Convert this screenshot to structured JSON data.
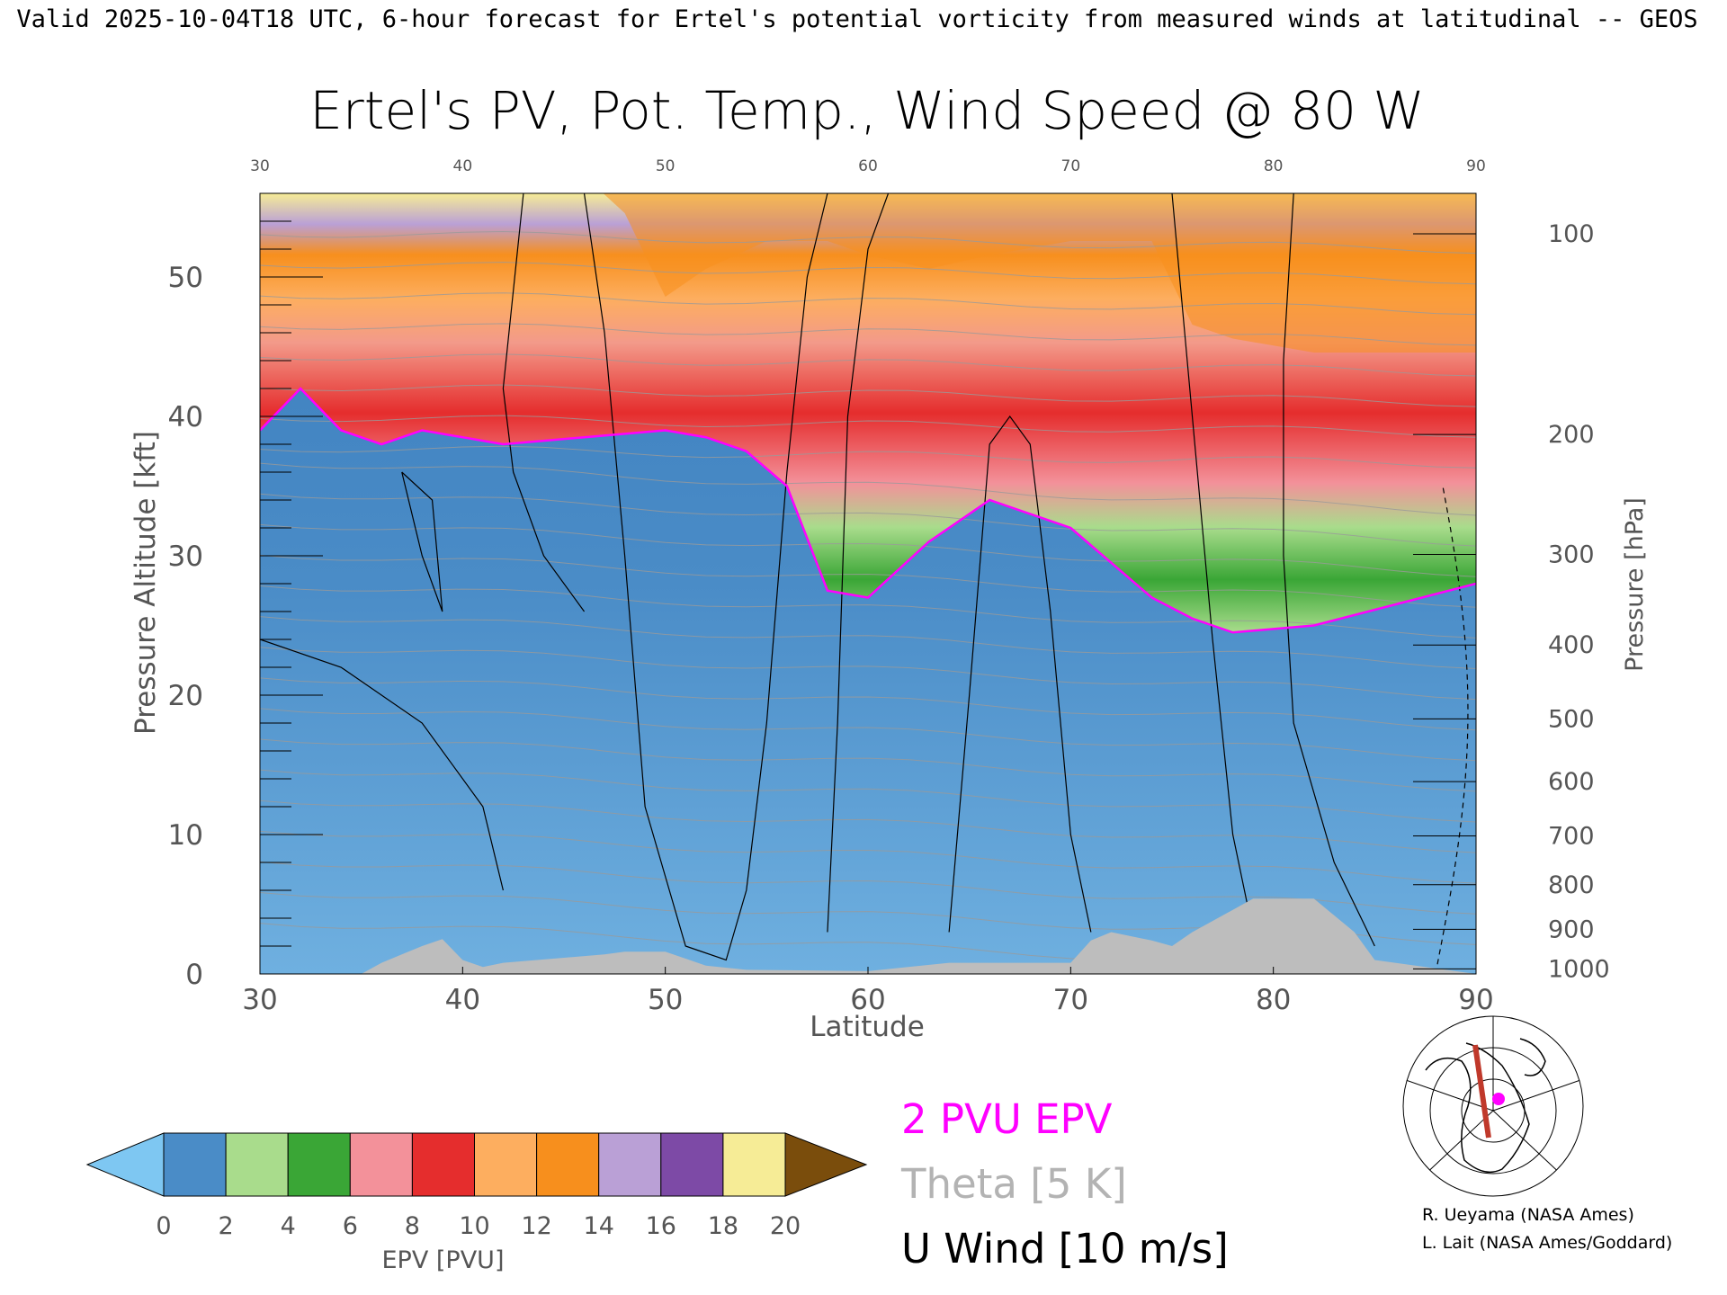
{
  "header": {
    "valid_line": "Valid 2025-10-04T18 UTC, 6-hour forecast for Ertel's potential vorticity from measured winds at latitudinal -- GEOS"
  },
  "chart_data": {
    "type": "heatmap",
    "title": "Ertel's PV, Pot. Temp., Wind Speed @ 80 W",
    "xlabel": "Latitude",
    "ylabel_left": "Pressure Altitude [kft]",
    "ylabel_right": "Pressure [hPa]",
    "xlim": [
      30,
      90
    ],
    "ylim": [
      0,
      56
    ],
    "x_ticks": [
      "30",
      "40",
      "50",
      "60",
      "70",
      "80",
      "90"
    ],
    "y_ticks": [
      "0",
      "10",
      "20",
      "30",
      "40",
      "50"
    ],
    "pressure_ticks": [
      {
        "label": "100",
        "kft": 53.1
      },
      {
        "label": "200",
        "kft": 38.7
      },
      {
        "label": "300",
        "kft": 30.1
      },
      {
        "label": "400",
        "kft": 23.6
      },
      {
        "label": "500",
        "kft": 18.3
      },
      {
        "label": "600",
        "kft": 13.8
      },
      {
        "label": "700",
        "kft": 9.9
      },
      {
        "label": "800",
        "kft": 6.4
      },
      {
        "label": "900",
        "kft": 3.2
      },
      {
        "label": "1000",
        "kft": 0.36
      }
    ],
    "pv_2pvu_boundary": {
      "lat": [
        30,
        32,
        34,
        36,
        38,
        42,
        46,
        50,
        52,
        54,
        56,
        58,
        60,
        63,
        66,
        70,
        74,
        76,
        78,
        82,
        86,
        90
      ],
      "kft": [
        39,
        42,
        39,
        38,
        39,
        38,
        38.5,
        39,
        38.5,
        37.5,
        35,
        27.5,
        27,
        31,
        34,
        32,
        27,
        25.5,
        24.5,
        25,
        26.5,
        28
      ]
    },
    "tropopause_top": {
      "lat": [
        30,
        35,
        40,
        45,
        48,
        50,
        52,
        55,
        58,
        60,
        63,
        66,
        70,
        74,
        76,
        78,
        82,
        86,
        90
      ],
      "kft": [
        56,
        56,
        56,
        56,
        52,
        46,
        48,
        50,
        50,
        49,
        48,
        49,
        50,
        50,
        44,
        43,
        42,
        42,
        42
      ]
    },
    "topography": {
      "lat": [
        30,
        35,
        36,
        37,
        38,
        39,
        40,
        41,
        42,
        47,
        48,
        50,
        52,
        54,
        60,
        64,
        70,
        71,
        72,
        74,
        75,
        76,
        77,
        78,
        79,
        80,
        81,
        82,
        83,
        84,
        85,
        90
      ],
      "kft": [
        0,
        0,
        0.8,
        1.4,
        2.0,
        2.5,
        1.0,
        0.5,
        0.8,
        1.4,
        1.6,
        1.6,
        0.6,
        0.3,
        0.2,
        0.8,
        0.8,
        2.4,
        3.0,
        2.4,
        2.0,
        3.0,
        3.8,
        4.6,
        5.4,
        5.4,
        5.4,
        5.4,
        4.2,
        3.0,
        1.0,
        0
      ]
    },
    "colorbar": {
      "label": "EPV [PVU]",
      "tick_labels": [
        "0",
        "2",
        "4",
        "6",
        "8",
        "10",
        "12",
        "14",
        "16",
        "18",
        "20"
      ],
      "colors": [
        "#4a8cc7",
        "#a9dc8c",
        "#3aa636",
        "#f3919a",
        "#e52d2d",
        "#fdae5f",
        "#f78f1d",
        "#baa0d6",
        "#7d4aa6",
        "#f6ec96"
      ],
      "under_color": "#7ec7f2",
      "over_color": "#7a4d0c"
    },
    "legend": [
      {
        "label": "2 PVU EPV",
        "color": "#ff00ff"
      },
      {
        "label": "Theta [5 K]",
        "color": "#b3b3b3"
      },
      {
        "label": "U Wind [10 m/s]",
        "color": "#000000"
      }
    ],
    "credits": [
      "R. Ueyama (NASA Ames)",
      "L. Lait (NASA Ames/Goddard)"
    ]
  }
}
